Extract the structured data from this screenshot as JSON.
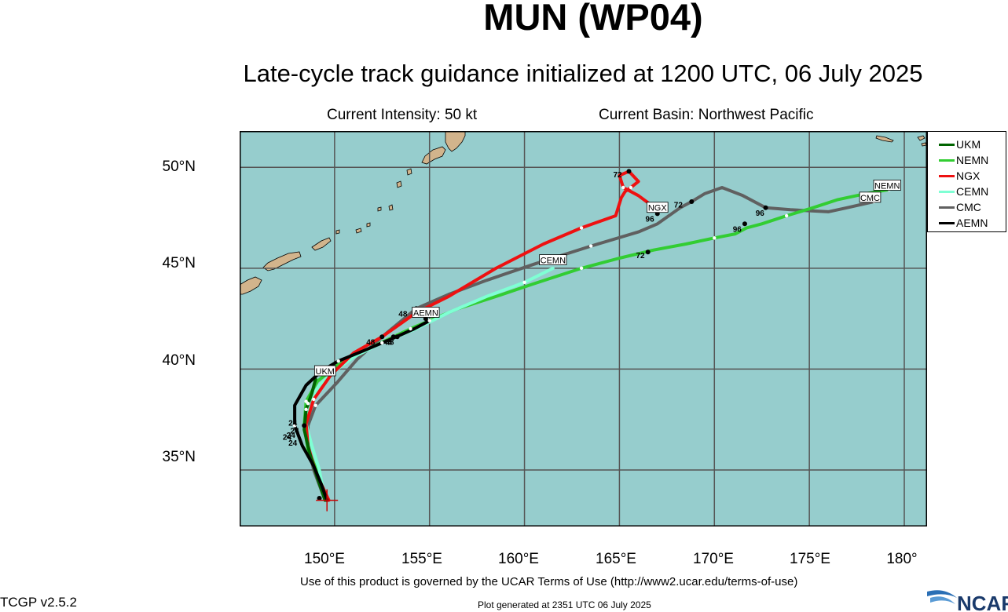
{
  "header": {
    "title": "MUN (WP04)",
    "subtitle": "Late-cycle track guidance initialized at 1200 UTC, 06 July 2025",
    "intensity": "Current Intensity: 50 kt",
    "basin": "Current Basin: Northwest Pacific"
  },
  "colors": {
    "ocean": "#96cdcd",
    "land": "#d2b48c",
    "grid": "#555555",
    "UKM": "#006400",
    "NEMN": "#32cd32",
    "NGX": "#ee1111",
    "CEMN": "#7fffd4",
    "CMC": "#606060",
    "AEMN": "#000000"
  },
  "axes": {
    "lat_ticks": [
      "35°N",
      "40°N",
      "45°N",
      "50°N"
    ],
    "lon_ticks": [
      "150°E",
      "155°E",
      "160°E",
      "165°E",
      "170°E",
      "175°E",
      "180°"
    ],
    "lat_range": [
      32.2,
      51.8
    ],
    "lon_range": [
      145.0,
      181.2
    ]
  },
  "legend": [
    {
      "name": "UKM",
      "color": "#006400"
    },
    {
      "name": "NEMN",
      "color": "#32cd32"
    },
    {
      "name": "NGX",
      "color": "#ee1111"
    },
    {
      "name": "CEMN",
      "color": "#7fffd4"
    },
    {
      "name": "CMC",
      "color": "#606060"
    },
    {
      "name": "AEMN",
      "color": "#000000"
    }
  ],
  "storm_position": {
    "lon": 149.6,
    "lat": 33.5
  },
  "tracks": [
    {
      "model": "CMC",
      "label": "CMC",
      "label_pos": {
        "lon": 178.2,
        "lat": 48.5
      },
      "points": [
        [
          149.5,
          33.5
        ],
        [
          148.9,
          35.0
        ],
        [
          148.6,
          36.2
        ],
        [
          148.6,
          37.2
        ],
        [
          149.0,
          38.2
        ],
        [
          150.1,
          39.3
        ],
        [
          151.2,
          40.5
        ],
        [
          152.5,
          41.6
        ],
        [
          154.3,
          43.0
        ],
        [
          156.0,
          43.7
        ],
        [
          158.0,
          44.4
        ],
        [
          160.5,
          45.2
        ],
        [
          163.5,
          46.1
        ],
        [
          166.0,
          46.8
        ],
        [
          167.0,
          47.2
        ],
        [
          168.2,
          48.0
        ],
        [
          168.8,
          48.3
        ],
        [
          169.5,
          48.7
        ],
        [
          170.4,
          49.0
        ],
        [
          171.5,
          48.6
        ],
        [
          172.7,
          48.0
        ],
        [
          174.0,
          47.9
        ],
        [
          176.0,
          47.8
        ],
        [
          177.0,
          48.0
        ],
        [
          178.4,
          48.3
        ]
      ],
      "dots": [
        [
          154.3,
          43.0
        ],
        [
          168.8,
          48.3
        ],
        [
          172.7,
          48.0
        ]
      ],
      "hours": [
        {
          "text": "48",
          "lon": 153.6,
          "lat": 42.6
        },
        {
          "text": "72",
          "lon": 168.1,
          "lat": 48.0
        },
        {
          "text": "96",
          "lon": 172.4,
          "lat": 47.6
        }
      ]
    },
    {
      "model": "NEMN",
      "label": "NEMN",
      "label_pos": {
        "lon": 179.1,
        "lat": 49.1
      },
      "points": [
        [
          149.5,
          33.5
        ],
        [
          149.1,
          34.9
        ],
        [
          148.6,
          36.0
        ],
        [
          148.4,
          37.2
        ],
        [
          148.5,
          38.4
        ],
        [
          149.1,
          39.4
        ],
        [
          150.3,
          40.3
        ],
        [
          152.0,
          41.1
        ],
        [
          154.0,
          42.0
        ],
        [
          156.5,
          43.0
        ],
        [
          158.5,
          43.6
        ],
        [
          160.4,
          44.2
        ],
        [
          163.0,
          45.0
        ],
        [
          165.0,
          45.5
        ],
        [
          166.8,
          45.9
        ],
        [
          168.5,
          46.2
        ],
        [
          170.0,
          46.5
        ],
        [
          171.1,
          46.7
        ],
        [
          171.7,
          47.0
        ],
        [
          172.5,
          47.2
        ],
        [
          173.8,
          47.6
        ],
        [
          175.2,
          48.0
        ],
        [
          176.5,
          48.4
        ],
        [
          178.0,
          48.7
        ],
        [
          179.2,
          48.9
        ]
      ],
      "dots": [
        [
          153.1,
          41.6
        ],
        [
          166.5,
          45.8
        ],
        [
          171.6,
          47.2
        ]
      ],
      "hours": [
        {
          "text": "48",
          "lon": 152.8,
          "lat": 41.2
        },
        {
          "text": "72",
          "lon": 166.1,
          "lat": 45.5
        },
        {
          "text": "96",
          "lon": 171.2,
          "lat": 46.8
        }
      ]
    },
    {
      "model": "CEMN",
      "label": "CEMN",
      "label_pos": {
        "lon": 161.5,
        "lat": 45.4
      },
      "points": [
        [
          149.5,
          33.5
        ],
        [
          149.2,
          35.0
        ],
        [
          148.8,
          36.2
        ],
        [
          148.5,
          37.3
        ],
        [
          148.6,
          38.3
        ],
        [
          149.2,
          39.2
        ],
        [
          150.0,
          39.9
        ],
        [
          151.0,
          40.6
        ],
        [
          152.5,
          41.3
        ],
        [
          154.3,
          42.0
        ],
        [
          156.0,
          42.8
        ],
        [
          158.0,
          43.6
        ],
        [
          160.0,
          44.3
        ],
        [
          161.5,
          45.0
        ]
      ],
      "dots": [],
      "hours": []
    },
    {
      "model": "NGX",
      "label": "NGX",
      "label_pos": {
        "lon": 167.0,
        "lat": 48.0
      },
      "points": [
        [
          149.7,
          33.5
        ],
        [
          149.0,
          34.9
        ],
        [
          148.6,
          36.2
        ],
        [
          148.5,
          37.3
        ],
        [
          148.9,
          38.5
        ],
        [
          149.8,
          39.7
        ],
        [
          151.0,
          40.8
        ],
        [
          152.5,
          41.6
        ],
        [
          154.3,
          42.8
        ],
        [
          156.0,
          43.6
        ],
        [
          158.5,
          45.0
        ],
        [
          161.0,
          46.2
        ],
        [
          163.0,
          47.0
        ],
        [
          164.8,
          47.6
        ],
        [
          165.1,
          48.5
        ],
        [
          165.3,
          48.8
        ],
        [
          165.6,
          49.0
        ],
        [
          166.0,
          49.3
        ],
        [
          165.5,
          49.8
        ],
        [
          165.0,
          49.6
        ],
        [
          165.2,
          49.0
        ],
        [
          166.0,
          48.6
        ],
        [
          167.0,
          47.9
        ]
      ],
      "dots": [
        [
          152.5,
          41.6
        ],
        [
          165.5,
          49.8
        ],
        [
          167.0,
          47.7
        ]
      ],
      "hours": [
        {
          "text": "48",
          "lon": 151.9,
          "lat": 41.2
        },
        {
          "text": "72",
          "lon": 164.9,
          "lat": 49.5
        },
        {
          "text": "96",
          "lon": 166.6,
          "lat": 47.3
        }
      ]
    },
    {
      "model": "UKM",
      "label": "UKM",
      "label_pos": {
        "lon": 149.5,
        "lat": 39.9
      },
      "points": [
        [
          149.5,
          33.5
        ],
        [
          149.1,
          34.6
        ],
        [
          148.7,
          35.8
        ],
        [
          148.4,
          37.0
        ],
        [
          148.5,
          38.0
        ],
        [
          148.8,
          38.8
        ],
        [
          149.0,
          39.5
        ]
      ],
      "dots": [],
      "hours": []
    },
    {
      "model": "AEMN",
      "label": "AEMN",
      "label_pos": {
        "lon": 154.8,
        "lat": 42.8
      },
      "points": [
        [
          149.6,
          33.5
        ],
        [
          149.3,
          34.3
        ],
        [
          148.9,
          35.2
        ],
        [
          148.3,
          36.2
        ],
        [
          147.9,
          37.2
        ],
        [
          147.9,
          38.2
        ],
        [
          148.5,
          39.2
        ],
        [
          149.3,
          39.9
        ],
        [
          150.2,
          40.4
        ],
        [
          151.5,
          40.9
        ],
        [
          153.0,
          41.5
        ],
        [
          154.2,
          42.0
        ],
        [
          155.0,
          42.4
        ]
      ],
      "dots": [
        [
          149.2,
          33.6
        ],
        [
          148.4,
          37.2
        ],
        [
          153.3,
          41.6
        ],
        [
          154.8,
          42.5
        ]
      ],
      "hours": [
        {
          "text": "24",
          "lon": 147.8,
          "lat": 37.2
        },
        {
          "text": "24",
          "lon": 147.9,
          "lat": 36.8
        },
        {
          "text": "24",
          "lon": 147.7,
          "lat": 36.6
        },
        {
          "text": "24",
          "lon": 147.5,
          "lat": 36.5
        },
        {
          "text": "24",
          "lon": 147.8,
          "lat": 36.2
        },
        {
          "text": "48",
          "lon": 152.9,
          "lat": 41.2
        }
      ]
    }
  ],
  "footer": {
    "terms": "Use of this product is governed by the UCAR Terms of Use (http://www2.ucar.edu/terms-of-use)",
    "version": "TCGP v2.5.2",
    "generated": "Plot generated at 2351 UTC   06 July 2025",
    "logo_text": "NCAR"
  }
}
